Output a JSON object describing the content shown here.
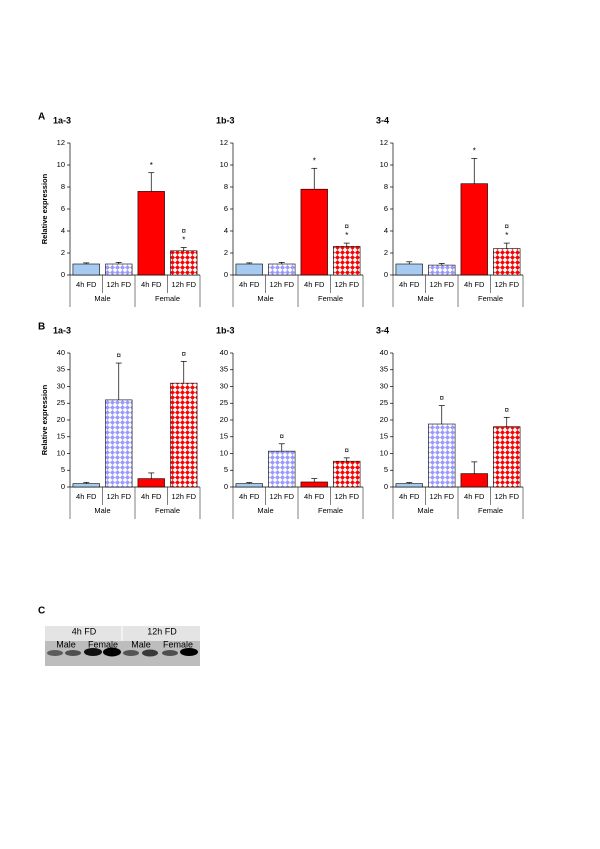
{
  "panel_labels": [
    "A",
    "B",
    "C"
  ],
  "chart_data": [
    {
      "type": "bar",
      "title": "1a-3",
      "y_label": "Relative expression",
      "categories": [
        "4h FD",
        "12h FD",
        "4h FD",
        "12h FD"
      ],
      "groups": [
        "Male",
        "Female"
      ],
      "values": [
        1.0,
        1.0,
        7.6,
        2.2
      ],
      "errors": [
        0.1,
        0.15,
        1.7,
        0.3
      ],
      "colors": [
        "#a6caf0",
        "#9999ff",
        "#ff0000",
        "#ff0000"
      ],
      "patterns": [
        "solid",
        "diamond",
        "solid",
        "diamond"
      ],
      "annotations": [
        [],
        [],
        [
          "*"
        ],
        [
          "¤",
          "*"
        ]
      ],
      "ylim": [
        0,
        12
      ],
      "yticks": [
        0,
        2,
        4,
        6,
        8,
        10,
        12
      ]
    },
    {
      "type": "bar",
      "title": "1b-3",
      "categories": [
        "4h FD",
        "12h FD",
        "4h FD",
        "12h FD"
      ],
      "groups": [
        "Male",
        "Female"
      ],
      "values": [
        1.0,
        1.0,
        7.8,
        2.6
      ],
      "errors": [
        0.1,
        0.15,
        1.9,
        0.3
      ],
      "colors": [
        "#a6caf0",
        "#9999ff",
        "#ff0000",
        "#ff0000"
      ],
      "patterns": [
        "solid",
        "diamond",
        "solid",
        "diamond"
      ],
      "annotations": [
        [],
        [],
        [
          "*"
        ],
        [
          "¤",
          "*"
        ]
      ],
      "ylim": [
        0,
        12
      ],
      "yticks": [
        0,
        2,
        4,
        6,
        8,
        10,
        12
      ]
    },
    {
      "type": "bar",
      "title": "3-4",
      "categories": [
        "4h FD",
        "12h FD",
        "4h FD",
        "12h FD"
      ],
      "groups": [
        "Male",
        "Female"
      ],
      "values": [
        1.0,
        0.9,
        8.3,
        2.4
      ],
      "errors": [
        0.2,
        0.15,
        2.3,
        0.5
      ],
      "colors": [
        "#a6caf0",
        "#9999ff",
        "#ff0000",
        "#ff0000"
      ],
      "patterns": [
        "solid",
        "diamond",
        "solid",
        "diamond"
      ],
      "annotations": [
        [],
        [],
        [
          "*"
        ],
        [
          "¤",
          "*"
        ]
      ],
      "ylim": [
        0,
        12
      ],
      "yticks": [
        0,
        2,
        4,
        6,
        8,
        10,
        12
      ]
    },
    {
      "type": "bar",
      "title": "1a-3",
      "y_label": "Relative expression",
      "categories": [
        "4h FD",
        "12h FD",
        "4h FD",
        "12h FD"
      ],
      "groups": [
        "Male",
        "Female"
      ],
      "values": [
        1.0,
        26,
        2.5,
        31
      ],
      "errors": [
        0.4,
        11,
        1.7,
        6.5
      ],
      "colors": [
        "#a6caf0",
        "#9999ff",
        "#ff0000",
        "#ff0000"
      ],
      "patterns": [
        "solid",
        "diamond",
        "solid",
        "diamond"
      ],
      "annotations": [
        [],
        [
          "¤"
        ],
        [],
        [
          "¤"
        ]
      ],
      "ylim": [
        0,
        40
      ],
      "yticks": [
        0,
        5,
        10,
        15,
        20,
        25,
        30,
        35,
        40
      ]
    },
    {
      "type": "bar",
      "title": "1b-3",
      "categories": [
        "4h FD",
        "12h FD",
        "4h FD",
        "12h FD"
      ],
      "groups": [
        "Male",
        "Female"
      ],
      "values": [
        1.0,
        10.7,
        1.5,
        7.7
      ],
      "errors": [
        0.3,
        2.2,
        1.0,
        1.0
      ],
      "colors": [
        "#a6caf0",
        "#9999ff",
        "#ff0000",
        "#ff0000"
      ],
      "patterns": [
        "solid",
        "diamond",
        "solid",
        "diamond"
      ],
      "annotations": [
        [],
        [
          "¤"
        ],
        [],
        [
          "¤"
        ]
      ],
      "ylim": [
        0,
        40
      ],
      "yticks": [
        0,
        5,
        10,
        15,
        20,
        25,
        30,
        35,
        40
      ]
    },
    {
      "type": "bar",
      "title": "3-4",
      "categories": [
        "4h FD",
        "12h FD",
        "4h FD",
        "12h FD"
      ],
      "groups": [
        "Male",
        "Female"
      ],
      "values": [
        1.0,
        18.8,
        4.0,
        18.0
      ],
      "errors": [
        0.3,
        5.5,
        3.5,
        2.8
      ],
      "colors": [
        "#a6caf0",
        "#9999ff",
        "#ff0000",
        "#ff0000"
      ],
      "patterns": [
        "solid",
        "diamond",
        "solid",
        "diamond"
      ],
      "annotations": [
        [],
        [
          "¤"
        ],
        [],
        [
          "¤"
        ]
      ],
      "ylim": [
        0,
        40
      ],
      "yticks": [
        0,
        5,
        10,
        15,
        20,
        25,
        30,
        35,
        40
      ]
    }
  ],
  "blot": {
    "time_labels": [
      "4h FD",
      "12h FD"
    ],
    "sex_labels": [
      "Male",
      "Female",
      "Male",
      "Female"
    ]
  }
}
